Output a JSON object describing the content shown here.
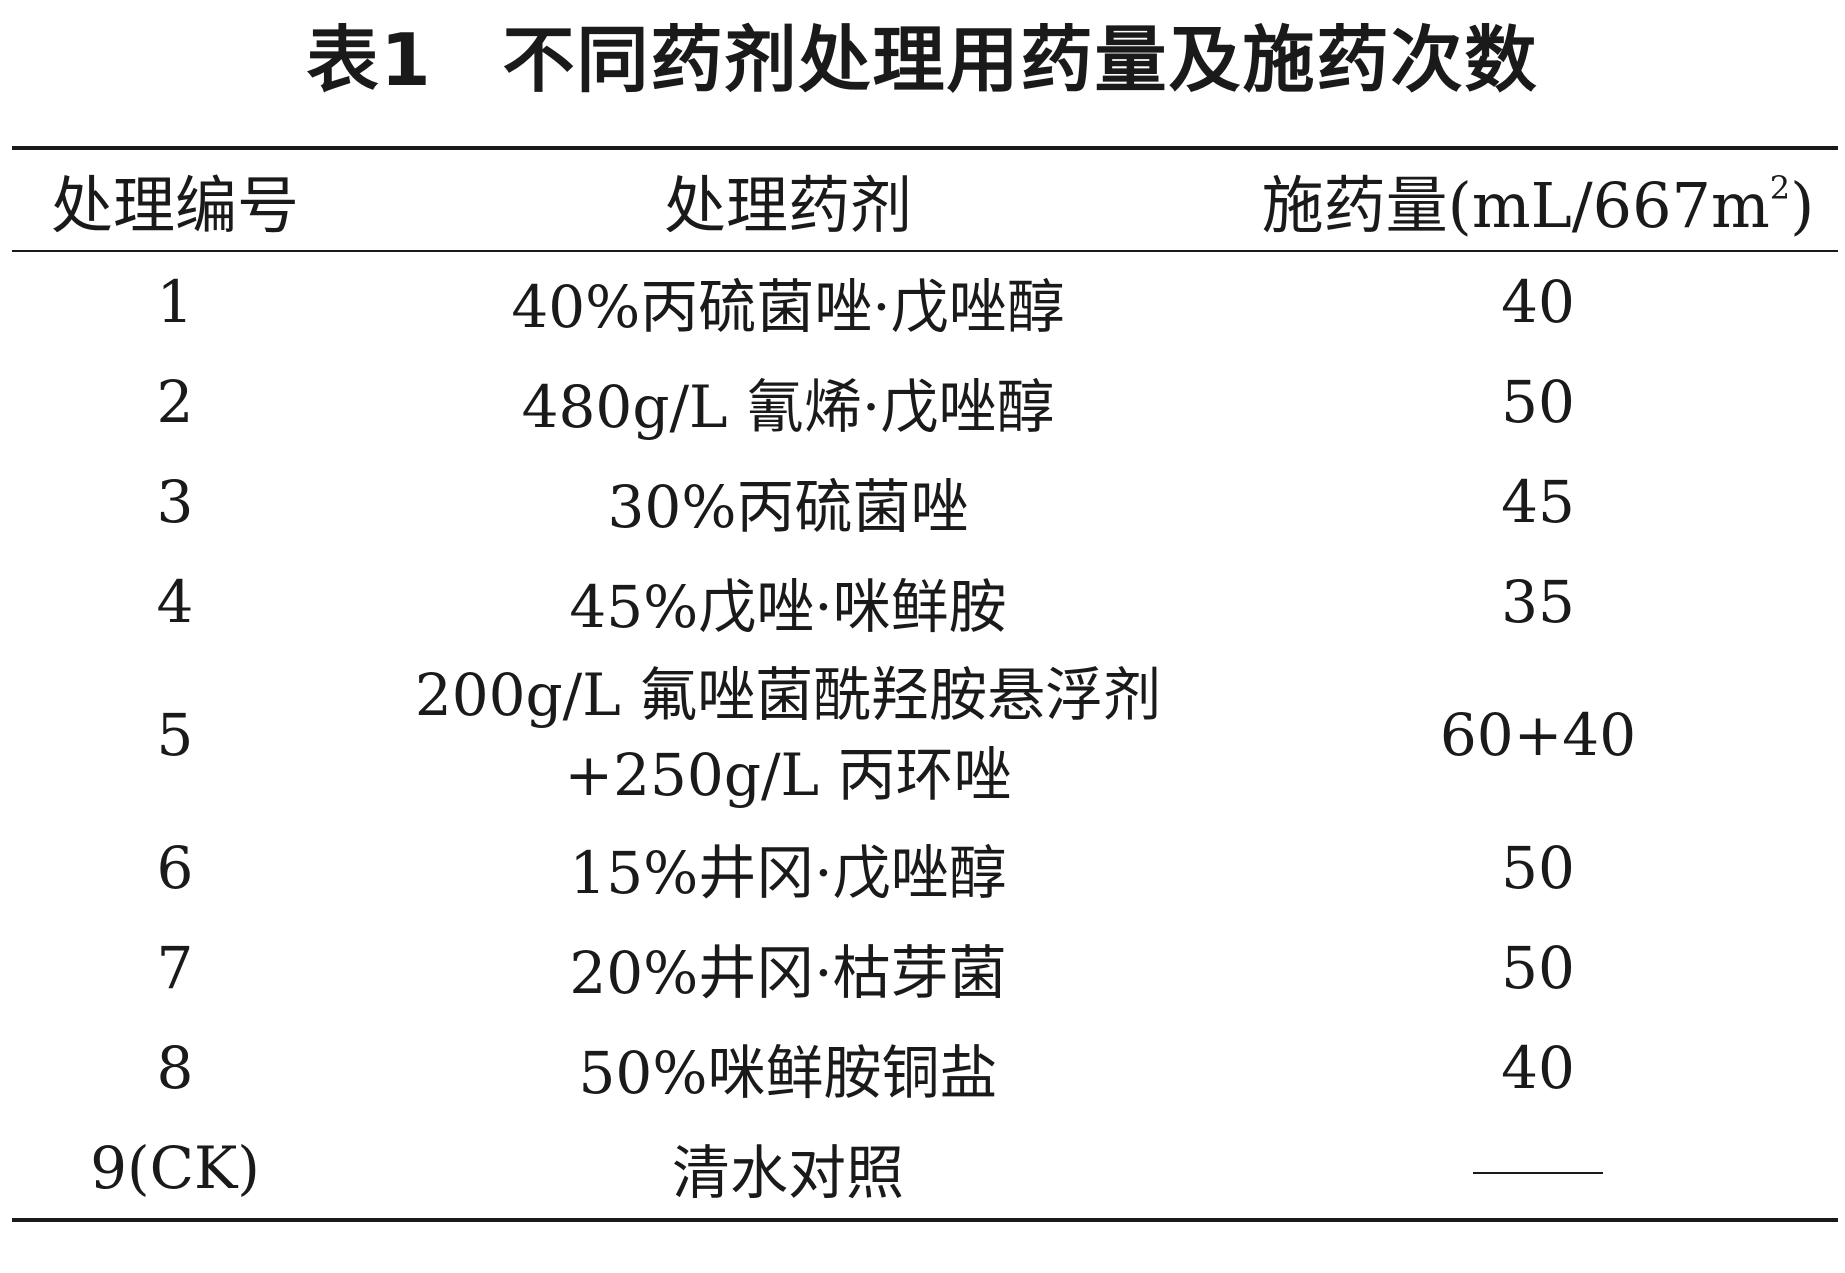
{
  "title": {
    "label": "表1",
    "text": "不同药剂处理用药量及施药次数"
  },
  "table": {
    "headers": {
      "treatment_no": "处理编号",
      "agent": "处理药剂",
      "dose_prefix": "施药量(mL/667m",
      "dose_sup": "2",
      "dose_suffix": ")"
    },
    "rows": [
      {
        "no": "1",
        "agent": "40%丙硫菌唑·戊唑醇",
        "dose": "40"
      },
      {
        "no": "2",
        "agent": "480g/L 氰烯·戊唑醇",
        "dose": "50"
      },
      {
        "no": "3",
        "agent": "30%丙硫菌唑",
        "dose": "45"
      },
      {
        "no": "4",
        "agent": "45%戊唑·咪鲜胺",
        "dose": "35"
      },
      {
        "no": "5",
        "agent_line1": "200g/L 氟唑菌酰羟胺悬浮剂",
        "agent_line2": "+250g/L 丙环唑",
        "dose": "60+40"
      },
      {
        "no": "6",
        "agent": "15%井冈·戊唑醇",
        "dose": "50"
      },
      {
        "no": "7",
        "agent": "20%井冈·枯芽菌",
        "dose": "50"
      },
      {
        "no": "8",
        "agent": "50%咪鲜胺铜盐",
        "dose": "40"
      },
      {
        "no": "9(CK)",
        "agent": "清水对照",
        "dose": ""
      }
    ]
  }
}
